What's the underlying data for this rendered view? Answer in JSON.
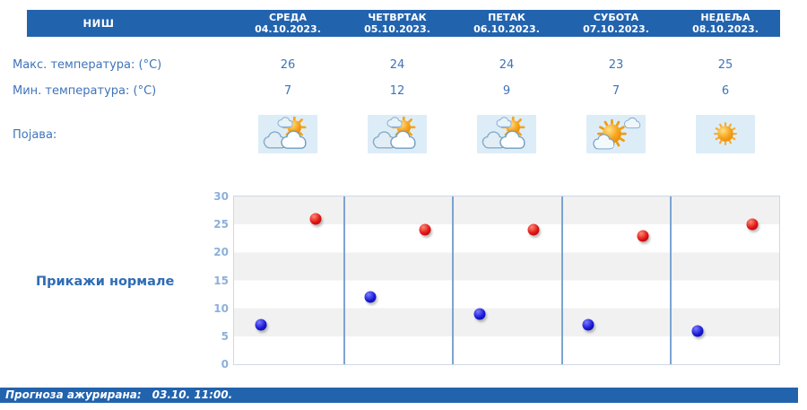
{
  "location": "НИШ",
  "days": [
    {
      "name": "СРЕДА",
      "date": "04.10.2023.",
      "max": "26",
      "min": "7",
      "icon": "partly-cloudy"
    },
    {
      "name": "ЧЕТВРТАК",
      "date": "05.10.2023.",
      "max": "24",
      "min": "12",
      "icon": "partly-cloudy"
    },
    {
      "name": "ПЕТАК",
      "date": "06.10.2023.",
      "max": "24",
      "min": "9",
      "icon": "partly-cloudy"
    },
    {
      "name": "СУБОТА",
      "date": "07.10.2023.",
      "max": "23",
      "min": "7",
      "icon": "mostly-sunny"
    },
    {
      "name": "НЕДЕЉА",
      "date": "08.10.2023.",
      "max": "25",
      "min": "6",
      "icon": "sunny"
    }
  ],
  "rows": {
    "max_label": "Макс. температура: (°C)",
    "min_label": "Мин. температура: (°C)",
    "phenomenon_label": "Појава:"
  },
  "chart": {
    "show_normals_label": "Прикажи нормале"
  },
  "chart_data": {
    "type": "scatter",
    "categories": [
      "04.10.2023.",
      "05.10.2023.",
      "06.10.2023.",
      "07.10.2023.",
      "08.10.2023."
    ],
    "series": [
      {
        "key": "max",
        "name": "Макс. температура (°C)",
        "color": "#e01414",
        "x_frac": 0.75,
        "values": [
          26,
          24,
          24,
          23,
          25
        ]
      },
      {
        "key": "min",
        "name": "Мин. температура (°C)",
        "color": "#1a1ad6",
        "x_frac": 0.25,
        "values": [
          7,
          12,
          9,
          7,
          6
        ]
      }
    ],
    "ylim": [
      0,
      30
    ],
    "yticks": [
      30,
      25,
      20,
      15,
      10,
      5,
      0
    ],
    "grid": "horizontal-bands-of-5",
    "legend": "none",
    "day_separators": true
  },
  "footer": {
    "updated_label": "Прогноза ажурирана:",
    "updated_value": "03.10. 11:00."
  },
  "colors": {
    "bar_blue": "#2263ae",
    "text_blue": "#3e74ba",
    "link_blue": "#2e6cb5",
    "axis_tick_blue": "#8cb0da",
    "band_gray": "#f1f1f1",
    "separator_blue": "#6f9ace",
    "max_dot_red": "#e01414",
    "min_dot_blue": "#1a1ad6",
    "icon_tile_bg": "#ddedf8"
  }
}
